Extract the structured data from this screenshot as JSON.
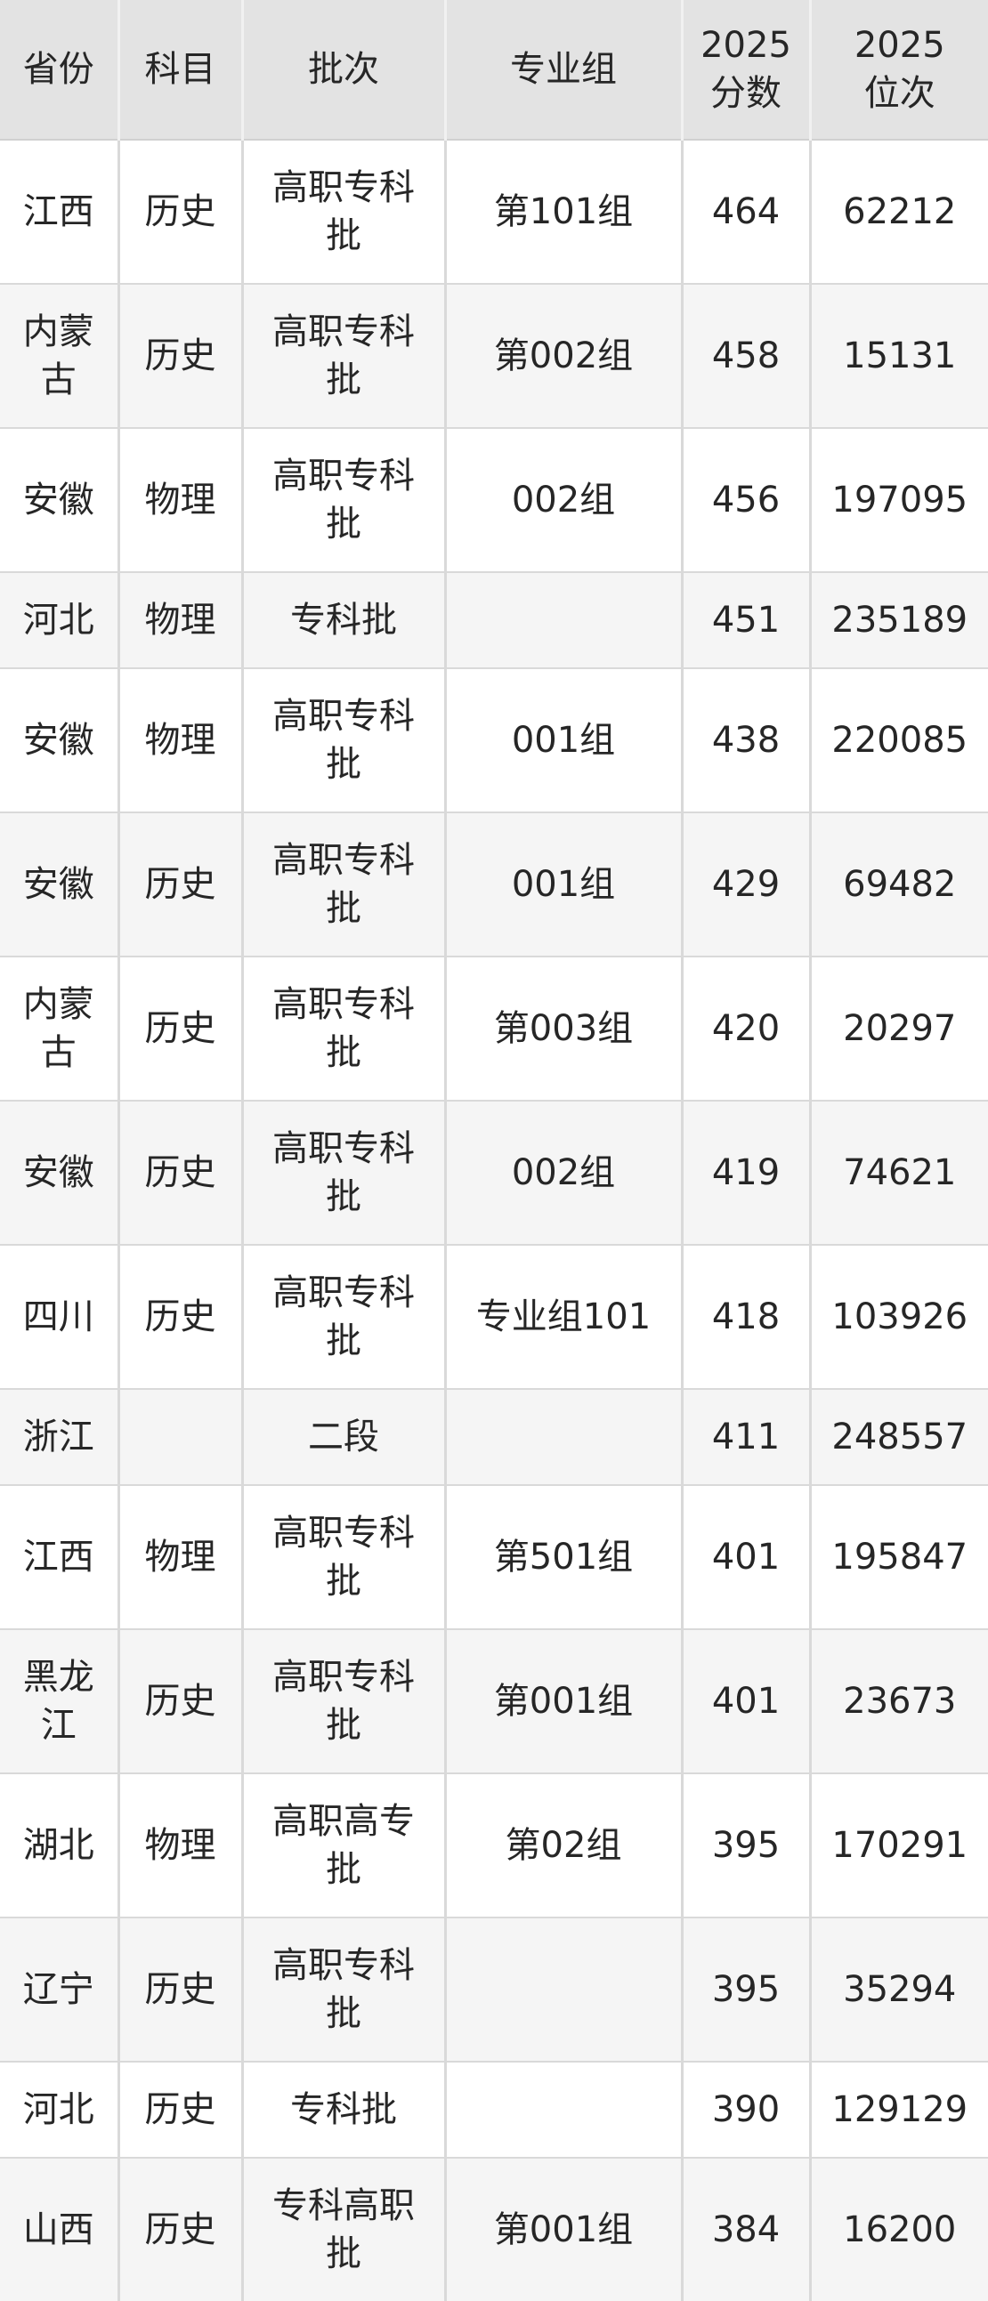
{
  "table": {
    "columns": [
      {
        "key": "province",
        "label": "省份"
      },
      {
        "key": "subject",
        "label": "科目"
      },
      {
        "key": "batch",
        "label": "批次"
      },
      {
        "key": "group",
        "label": "专业组"
      },
      {
        "key": "score",
        "label": "2025\n分数"
      },
      {
        "key": "rank",
        "label": "2025\n位次"
      }
    ],
    "rows": [
      {
        "province": "江西",
        "subject": "历史",
        "batch": "高职专科\n批",
        "group": "第101组",
        "score": "464",
        "rank": "62212"
      },
      {
        "province": "内蒙\n古",
        "subject": "历史",
        "batch": "高职专科\n批",
        "group": "第002组",
        "score": "458",
        "rank": "15131"
      },
      {
        "province": "安徽",
        "subject": "物理",
        "batch": "高职专科\n批",
        "group": "002组",
        "score": "456",
        "rank": "197095"
      },
      {
        "province": "河北",
        "subject": "物理",
        "batch": "专科批",
        "group": "",
        "score": "451",
        "rank": "235189"
      },
      {
        "province": "安徽",
        "subject": "物理",
        "batch": "高职专科\n批",
        "group": "001组",
        "score": "438",
        "rank": "220085"
      },
      {
        "province": "安徽",
        "subject": "历史",
        "batch": "高职专科\n批",
        "group": "001组",
        "score": "429",
        "rank": "69482"
      },
      {
        "province": "内蒙\n古",
        "subject": "历史",
        "batch": "高职专科\n批",
        "group": "第003组",
        "score": "420",
        "rank": "20297"
      },
      {
        "province": "安徽",
        "subject": "历史",
        "batch": "高职专科\n批",
        "group": "002组",
        "score": "419",
        "rank": "74621"
      },
      {
        "province": "四川",
        "subject": "历史",
        "batch": "高职专科\n批",
        "group": "专业组101",
        "score": "418",
        "rank": "103926"
      },
      {
        "province": "浙江",
        "subject": "",
        "batch": "二段",
        "group": "",
        "score": "411",
        "rank": "248557"
      },
      {
        "province": "江西",
        "subject": "物理",
        "batch": "高职专科\n批",
        "group": "第501组",
        "score": "401",
        "rank": "195847"
      },
      {
        "province": "黑龙\n江",
        "subject": "历史",
        "batch": "高职专科\n批",
        "group": "第001组",
        "score": "401",
        "rank": "23673"
      },
      {
        "province": "湖北",
        "subject": "物理",
        "batch": "高职高专\n批",
        "group": "第02组",
        "score": "395",
        "rank": "170291"
      },
      {
        "province": "辽宁",
        "subject": "历史",
        "batch": "高职专科\n批",
        "group": "",
        "score": "395",
        "rank": "35294"
      },
      {
        "province": "河北",
        "subject": "历史",
        "batch": "专科批",
        "group": "",
        "score": "390",
        "rank": "129129"
      },
      {
        "province": "山西",
        "subject": "历史",
        "batch": "专科高职\n批",
        "group": "第001组",
        "score": "384",
        "rank": "16200"
      }
    ]
  },
  "chart_data": {
    "type": "table",
    "title": "",
    "columns": [
      "省份",
      "科目",
      "批次",
      "专业组",
      "2025分数",
      "2025位次"
    ],
    "rows": [
      [
        "江西",
        "历史",
        "高职专科批",
        "第101组",
        464,
        62212
      ],
      [
        "内蒙古",
        "历史",
        "高职专科批",
        "第002组",
        458,
        15131
      ],
      [
        "安徽",
        "物理",
        "高职专科批",
        "002组",
        456,
        197095
      ],
      [
        "河北",
        "物理",
        "专科批",
        "",
        451,
        235189
      ],
      [
        "安徽",
        "物理",
        "高职专科批",
        "001组",
        438,
        220085
      ],
      [
        "安徽",
        "历史",
        "高职专科批",
        "001组",
        429,
        69482
      ],
      [
        "内蒙古",
        "历史",
        "高职专科批",
        "第003组",
        420,
        20297
      ],
      [
        "安徽",
        "历史",
        "高职专科批",
        "002组",
        419,
        74621
      ],
      [
        "四川",
        "历史",
        "高职专科批",
        "专业组101",
        418,
        103926
      ],
      [
        "浙江",
        "",
        "二段",
        "",
        411,
        248557
      ],
      [
        "江西",
        "物理",
        "高职专科批",
        "第501组",
        401,
        195847
      ],
      [
        "黑龙江",
        "历史",
        "高职专科批",
        "第001组",
        401,
        23673
      ],
      [
        "湖北",
        "物理",
        "高职高专批",
        "第02组",
        395,
        170291
      ],
      [
        "辽宁",
        "历史",
        "高职专科批",
        "",
        395,
        35294
      ],
      [
        "河北",
        "历史",
        "专科批",
        "",
        390,
        129129
      ],
      [
        "山西",
        "历史",
        "专科高职批",
        "第001组",
        384,
        16200
      ]
    ]
  },
  "colors": {
    "header_bg": "#e3e3e3",
    "row_bg": "#ffffff",
    "row_alt_bg": "#f5f5f5",
    "grid_border": "#d9d9d9",
    "header_divider": "#f1f1f1",
    "text": "#262626"
  }
}
